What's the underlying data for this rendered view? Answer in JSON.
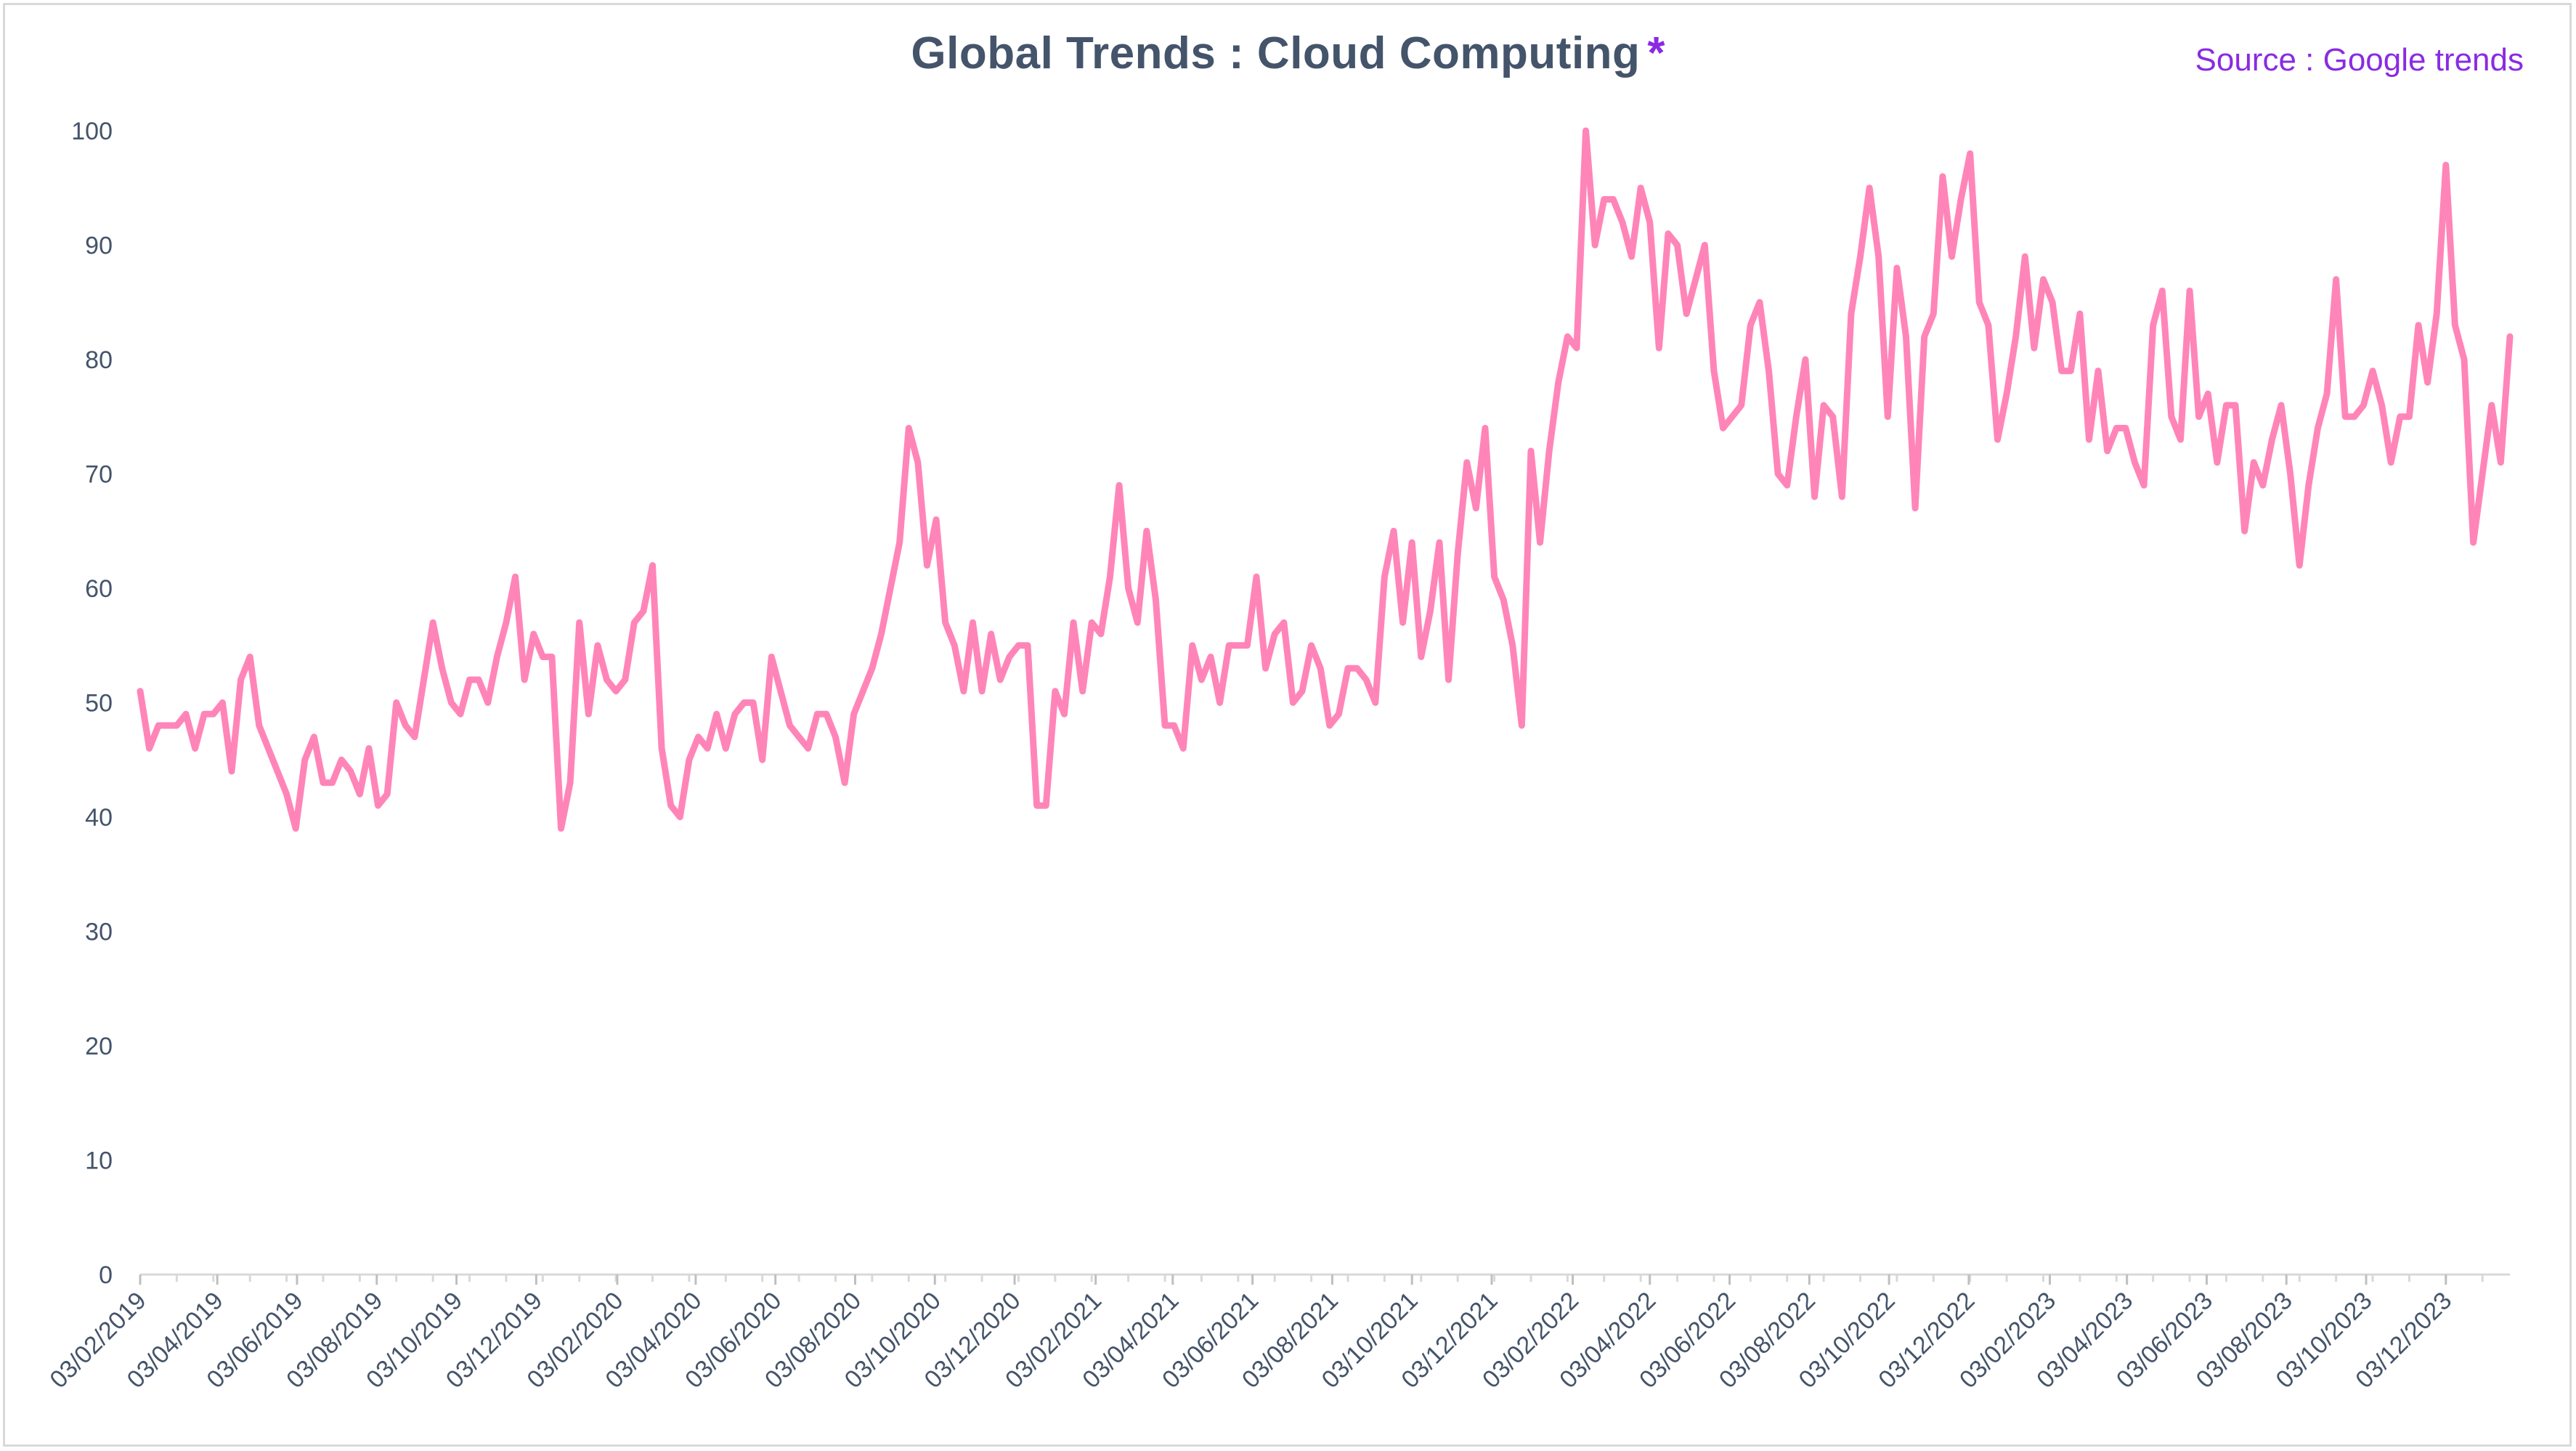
{
  "title": "Global Trends : Cloud Computing",
  "title_asterisk": "*",
  "source_label": "Source : Google trends",
  "colors": {
    "title": "#44546a",
    "accent": "#8a2be2",
    "line": "#ff85b8",
    "axis_text": "#44546a",
    "axis_line": "#d9d9d9"
  },
  "chart_data": {
    "type": "line",
    "title": "Global Trends : Cloud Computing",
    "xlabel": "",
    "ylabel": "",
    "ylim": [
      0,
      100
    ],
    "y_ticks": [
      "0",
      "10",
      "20",
      "30",
      "40",
      "50",
      "60",
      "70",
      "80",
      "90",
      "100"
    ],
    "x_start": "03/02/2019",
    "x_interval": "weekly",
    "x_ticks": [
      "03/02/2019",
      "03/04/2019",
      "03/06/2019",
      "03/08/2019",
      "03/10/2019",
      "03/12/2019",
      "03/02/2020",
      "03/04/2020",
      "03/06/2020",
      "03/08/2020",
      "03/10/2020",
      "03/12/2020",
      "03/02/2021",
      "03/04/2021",
      "03/06/2021",
      "03/08/2021",
      "03/10/2021",
      "03/12/2021",
      "03/02/2022",
      "03/04/2022",
      "03/06/2022",
      "03/08/2022",
      "03/10/2022",
      "03/12/2022",
      "03/02/2023",
      "03/04/2023",
      "03/06/2023",
      "03/08/2023",
      "03/10/2023",
      "03/12/2023"
    ],
    "grid": false,
    "legend": "none",
    "series": [
      {
        "values": [
          51,
          46,
          48,
          48,
          48,
          49,
          46,
          49,
          49,
          50,
          44,
          52,
          54,
          48,
          46,
          44,
          42,
          39,
          45,
          47,
          43,
          43,
          45,
          44,
          42,
          46,
          41,
          42,
          50,
          48,
          47,
          52,
          57,
          53,
          50,
          49,
          52,
          52,
          50,
          54,
          57,
          61,
          52,
          56,
          54,
          54,
          39,
          43,
          57,
          49,
          55,
          52,
          51,
          52,
          57,
          58,
          62,
          46,
          41,
          40,
          45,
          47,
          46,
          49,
          46,
          49,
          50,
          50,
          45,
          54,
          51,
          48,
          47,
          46,
          49,
          49,
          47,
          43,
          49,
          51,
          53,
          56,
          60,
          64,
          74,
          71,
          62,
          66,
          57,
          55,
          51,
          57,
          51,
          56,
          52,
          54,
          55,
          55,
          41,
          41,
          51,
          49,
          57,
          51,
          57,
          56,
          61,
          69,
          60,
          57,
          65,
          59,
          48,
          48,
          46,
          55,
          52,
          54,
          50,
          55,
          55,
          55,
          61,
          53,
          56,
          57,
          50,
          51,
          55,
          53,
          48,
          49,
          53,
          53,
          52,
          50,
          61,
          65,
          57,
          64,
          54,
          58,
          64,
          52,
          63,
          71,
          67,
          74,
          61,
          59,
          55,
          48,
          72,
          64,
          72,
          78,
          82,
          81,
          100,
          90,
          94,
          94,
          92,
          89,
          95,
          92,
          81,
          91,
          90,
          84,
          87,
          90,
          79,
          74,
          75,
          76,
          83,
          85,
          79,
          70,
          69,
          75,
          80,
          68,
          76,
          75,
          68,
          84,
          89,
          95,
          89,
          75,
          88,
          82,
          67,
          82,
          84,
          96,
          89,
          94,
          98,
          85,
          83,
          73,
          77,
          82,
          89,
          81,
          87,
          85,
          79,
          79,
          84,
          73,
          79,
          72,
          74,
          74,
          71,
          69,
          83,
          86,
          75,
          73,
          86,
          75,
          77,
          71,
          76,
          76,
          65,
          71,
          69,
          73,
          76,
          70,
          62,
          69,
          74,
          77,
          87,
          75,
          75,
          76,
          79,
          76,
          71,
          75,
          75,
          83,
          78,
          84,
          97,
          83,
          80,
          64,
          70,
          76,
          71,
          82
        ]
      }
    ]
  }
}
